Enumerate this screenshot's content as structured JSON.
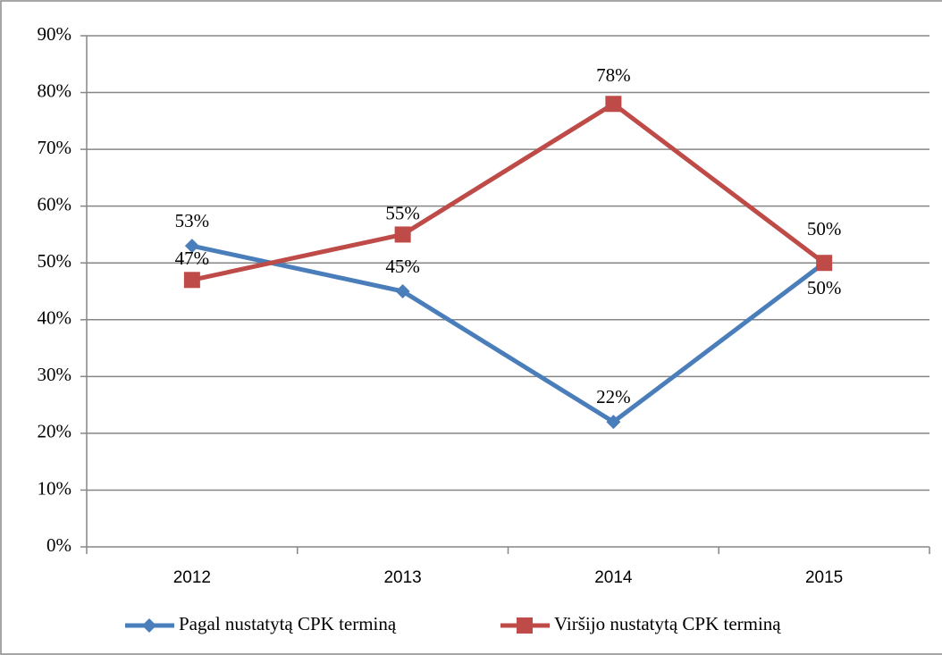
{
  "chart_data": {
    "type": "line",
    "categories": [
      "2012",
      "2013",
      "2014",
      "2015"
    ],
    "series": [
      {
        "name": "Pagal nustatytą CPK terminą",
        "color": "#4a7ebb",
        "values": [
          53,
          45,
          22,
          50
        ],
        "value_labels": [
          "53%",
          "45%",
          "22%",
          "50%"
        ]
      },
      {
        "name": "Viršijo nustatytą CPK terminą",
        "color": "#be4b48",
        "values": [
          47,
          55,
          78,
          50
        ],
        "value_labels": [
          "47%",
          "55%",
          "78%",
          "50%"
        ]
      }
    ],
    "ylim": [
      0,
      90
    ],
    "yticks": [
      {
        "value": 0,
        "label": "0%"
      },
      {
        "value": 10,
        "label": "10%"
      },
      {
        "value": 20,
        "label": "20%"
      },
      {
        "value": 30,
        "label": "30%"
      },
      {
        "value": 40,
        "label": "40%"
      },
      {
        "value": 50,
        "label": "50%"
      },
      {
        "value": 60,
        "label": "60%"
      },
      {
        "value": 70,
        "label": "70%"
      },
      {
        "value": 80,
        "label": "80%"
      },
      {
        "value": 90,
        "label": "90%"
      }
    ],
    "grid": true,
    "legend": "bottom"
  }
}
